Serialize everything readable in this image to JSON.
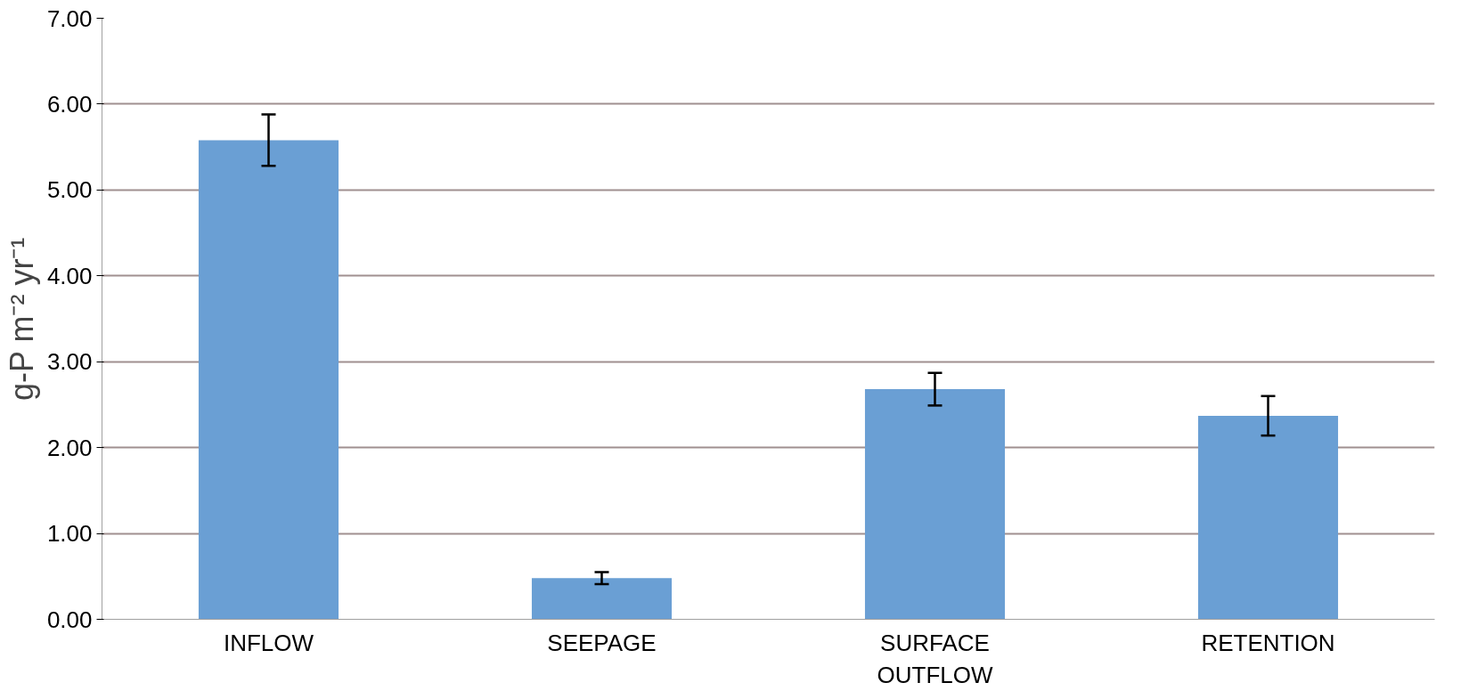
{
  "chart_data": {
    "type": "bar",
    "ylabel": "g-P m⁻² yr⁻¹",
    "categories": [
      "INFLOW",
      "SEEPAGE",
      "SURFACE OUTFLOW",
      "RETENTION"
    ],
    "values": [
      5.58,
      0.48,
      2.68,
      2.37
    ],
    "errors": [
      0.3,
      0.07,
      0.19,
      0.23
    ],
    "color": "#6a9fd4",
    "ylim": [
      0,
      7
    ],
    "yticks": [
      {
        "value": 0,
        "label": "0.00"
      },
      {
        "value": 1,
        "label": "1.00"
      },
      {
        "value": 2,
        "label": "2.00"
      },
      {
        "value": 3,
        "label": "3.00"
      },
      {
        "value": 4,
        "label": "4.00"
      },
      {
        "value": 5,
        "label": "5.00"
      },
      {
        "value": 6,
        "label": "6.00"
      },
      {
        "value": 7,
        "label": "7.00"
      }
    ],
    "grid": "y"
  }
}
